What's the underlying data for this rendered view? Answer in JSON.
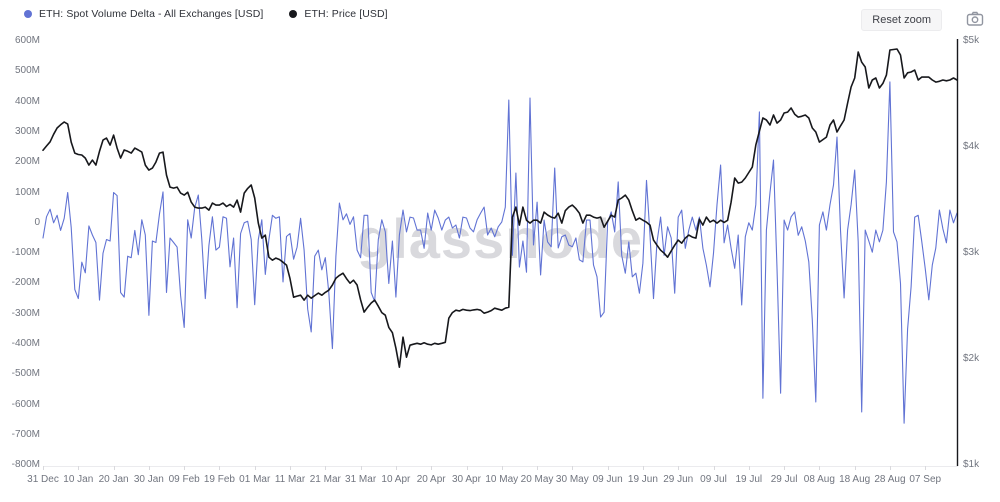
{
  "legend": {
    "items": [
      {
        "label": "ETH: Spot Volume Delta - All Exchanges [USD]",
        "color": "#6173d4"
      },
      {
        "label": "ETH: Price [USD]",
        "color": "#17181c"
      }
    ]
  },
  "toolbar": {
    "reset_zoom_label": "Reset zoom",
    "camera_icon": "camera-icon"
  },
  "watermark": "glassnode",
  "chart_data": {
    "type": "line",
    "title": "",
    "legend_position": "top-left",
    "grid": false,
    "x_axis": {
      "tick_interval_days": 10,
      "total_days": 259,
      "tick_labels": [
        "31 Dec",
        "10 Jan",
        "20 Jan",
        "30 Jan",
        "09 Feb",
        "19 Feb",
        "01 Mar",
        "11 Mar",
        "21 Mar",
        "31 Mar",
        "10 Apr",
        "20 Apr",
        "30 Apr",
        "10 May",
        "20 May",
        "30 May",
        "09 Jun",
        "19 Jun",
        "29 Jun",
        "09 Jul",
        "19 Jul",
        "29 Jul",
        "08 Aug",
        "18 Aug",
        "28 Aug",
        "07 Sep"
      ]
    },
    "y_axis_left": {
      "unit": "million USD",
      "max": 600,
      "min": -800,
      "tick_step": 100,
      "tick_labels": [
        "600M",
        "500M",
        "400M",
        "300M",
        "200M",
        "100M",
        "0",
        "-100M",
        "-200M",
        "-300M",
        "-400M",
        "-500M",
        "-600M",
        "-700M",
        "-800M"
      ]
    },
    "y_axis_right": {
      "unit": "USD",
      "max": 5000,
      "min": 1000,
      "tick_step": 1000,
      "tick_labels": [
        "$5k",
        "$4k",
        "$3k",
        "$2k",
        "$1k"
      ]
    },
    "series": [
      {
        "name": "ETH: Spot Volume Delta - All Exchanges [USD]",
        "color": "#6173d4",
        "y_axis": "left",
        "unit": "million USD",
        "values": [
          -50,
          20,
          45,
          0,
          25,
          -25,
          15,
          100,
          -15,
          -220,
          -250,
          -130,
          -165,
          -10,
          -40,
          -65,
          -255,
          -100,
          -55,
          -60,
          100,
          90,
          -230,
          -245,
          -110,
          -115,
          -25,
          -105,
          10,
          -40,
          -305,
          -60,
          -65,
          30,
          102,
          -230,
          -50,
          -65,
          -80,
          -240,
          -345,
          10,
          -50,
          50,
          92,
          -55,
          -250,
          -75,
          20,
          -90,
          -80,
          20,
          15,
          -145,
          -50,
          -280,
          -35,
          0,
          5,
          -55,
          -270,
          -55,
          10,
          -170,
          -55,
          25,
          15,
          20,
          -195,
          -45,
          -35,
          -120,
          -80,
          15,
          -90,
          -285,
          -360,
          -110,
          -90,
          -155,
          -115,
          -230,
          -415,
          -110,
          65,
          10,
          30,
          -5,
          20,
          -90,
          -115,
          25,
          25,
          -230,
          -260,
          -55,
          10,
          -30,
          -200,
          -60,
          -245,
          -40,
          42,
          -30,
          19,
          16,
          -24,
          -24,
          -84,
          32,
          -24,
          42,
          16,
          -24,
          9,
          19,
          -17,
          -7,
          -50,
          19,
          16,
          -17,
          -30,
          10,
          32,
          52,
          -40,
          -17,
          -46,
          -13,
          3,
          52,
          405,
          -107,
          164,
          -146,
          -60,
          -163,
          412,
          -73,
          68,
          -172,
          9,
          -63,
          -79,
          181,
          -83,
          -46,
          -40,
          -73,
          -79,
          -50,
          -122,
          -129,
          9,
          9,
          -139,
          -178,
          -311,
          -295,
          0,
          36,
          -30,
          135,
          -107,
          -166,
          -63,
          -178,
          -166,
          -232,
          -133,
          140,
          -40,
          -250,
          -63,
          19,
          -107,
          -13,
          -50,
          -232,
          19,
          42,
          -84,
          -24,
          19,
          -24,
          19,
          -84,
          -140,
          -211,
          -100,
          60,
          191,
          -66,
          -7,
          -84,
          -150,
          -40,
          -271,
          -46,
          0,
          -24,
          60,
          366,
          -579,
          -24,
          100,
          207,
          -150,
          -562,
          9,
          -24,
          20,
          36,
          -41,
          -13,
          -60,
          -129,
          -321,
          -591,
          -7,
          36,
          -24,
          60,
          125,
          283,
          -24,
          -248,
          -24,
          60,
          174,
          -63,
          -624,
          -24,
          -60,
          -97,
          -24,
          -63,
          -24,
          135,
          465,
          -30,
          -63,
          -200,
          -661,
          -350,
          -211,
          19,
          25,
          -60,
          -150,
          -254,
          -139,
          -83,
          42,
          -20,
          -66,
          42,
          0,
          32
        ]
      },
      {
        "name": "ETH: Price [USD]",
        "color": "#17181c",
        "y_axis": "right",
        "unit": "USD",
        "values": [
          3970,
          4010,
          4050,
          4120,
          4180,
          4210,
          4236,
          4217,
          4047,
          3943,
          3930,
          3925,
          3896,
          3830,
          3877,
          3830,
          3960,
          4066,
          4085,
          4019,
          4113,
          3990,
          3896,
          3972,
          3960,
          3943,
          3990,
          3972,
          3953,
          3830,
          3783,
          3802,
          3858,
          3943,
          3953,
          3736,
          3623,
          3613,
          3623,
          3566,
          3547,
          3575,
          3481,
          3434,
          3425,
          3425,
          3434,
          3406,
          3472,
          3453,
          3453,
          3472,
          3440,
          3460,
          3434,
          3500,
          3387,
          3566,
          3610,
          3642,
          3520,
          3283,
          3142,
          3170,
          2962,
          2934,
          2953,
          2940,
          2915,
          2887,
          2760,
          2585,
          2595,
          2604,
          2557,
          2604,
          2575,
          2600,
          2623,
          2604,
          2630,
          2651,
          2700,
          2764,
          2790,
          2811,
          2760,
          2717,
          2745,
          2700,
          2560,
          2444,
          2490,
          2530,
          2557,
          2500,
          2440,
          2415,
          2300,
          2250,
          2104,
          1925,
          2208,
          2019,
          2132,
          2142,
          2150,
          2142,
          2155,
          2142,
          2135,
          2150,
          2142,
          2150,
          2160,
          2387,
          2440,
          2462,
          2455,
          2470,
          2462,
          2458,
          2465,
          2470,
          2462,
          2434,
          2444,
          2458,
          2481,
          2472,
          2462,
          2481,
          2490,
          3340,
          3434,
          3264,
          3434,
          3311,
          3283,
          3311,
          3311,
          3283,
          3387,
          3360,
          3340,
          3330,
          3377,
          3283,
          3400,
          3434,
          3453,
          3420,
          3377,
          3283,
          3358,
          3358,
          3340,
          3330,
          3340,
          3245,
          3300,
          3358,
          3340,
          3500,
          3520,
          3547,
          3500,
          3400,
          3311,
          3330,
          3311,
          3292,
          3264,
          3123,
          3075,
          3028,
          3000,
          2962,
          3020,
          3075,
          3123,
          3094,
          3142,
          3170,
          3151,
          3142,
          3320,
          3264,
          3340,
          3293,
          3311,
          3283,
          3311,
          3290,
          3310,
          3481,
          3708,
          3660,
          3670,
          3708,
          3760,
          3811,
          4019,
          4150,
          4274,
          4255,
          4208,
          4302,
          4226,
          4255,
          4321,
          4330,
          4368,
          4310,
          4283,
          4290,
          4302,
          4274,
          4180,
          4142,
          4047,
          4070,
          4094,
          4208,
          4255,
          4142,
          4200,
          4255,
          4415,
          4566,
          4651,
          4896,
          4800,
          4755,
          4557,
          4632,
          4651,
          4557,
          4600,
          4679,
          4915,
          4920,
          4925,
          4868,
          4651,
          4700,
          4708,
          4726,
          4632,
          4660,
          4660,
          4660,
          4632,
          4613,
          4620,
          4632,
          4625,
          4632,
          4651,
          4632
        ]
      }
    ]
  }
}
